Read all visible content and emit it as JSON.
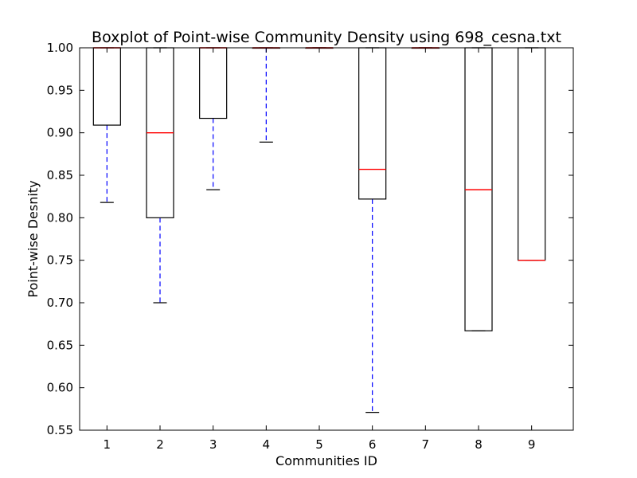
{
  "chart_data": {
    "type": "box",
    "title": "Boxplot of Point-wise Community Density using 698_cesna.txt",
    "xlabel": "Communities ID",
    "ylabel": "Point-wise Desnity",
    "ylim": [
      0.55,
      1.0
    ],
    "yticks": [
      "0.55",
      "0.60",
      "0.65",
      "0.70",
      "0.75",
      "0.80",
      "0.85",
      "0.90",
      "0.95",
      "1.00"
    ],
    "categories": [
      "1",
      "2",
      "3",
      "4",
      "5",
      "6",
      "7",
      "8",
      "9"
    ],
    "boxes": [
      {
        "id": "1",
        "whisker_low": 0.818,
        "q1": 0.909,
        "median": 1.0,
        "q3": 1.0,
        "whisker_high": 1.0
      },
      {
        "id": "2",
        "whisker_low": 0.7,
        "q1": 0.8,
        "median": 0.9,
        "q3": 1.0,
        "whisker_high": 1.0
      },
      {
        "id": "3",
        "whisker_low": 0.833,
        "q1": 0.917,
        "median": 1.0,
        "q3": 1.0,
        "whisker_high": 1.0
      },
      {
        "id": "4",
        "whisker_low": 0.889,
        "q1": 1.0,
        "median": 1.0,
        "q3": 1.0,
        "whisker_high": 1.0
      },
      {
        "id": "5",
        "whisker_low": 1.0,
        "q1": 1.0,
        "median": 1.0,
        "q3": 1.0,
        "whisker_high": 1.0
      },
      {
        "id": "6",
        "whisker_low": 0.571,
        "q1": 0.822,
        "median": 0.857,
        "q3": 1.0,
        "whisker_high": 1.0
      },
      {
        "id": "7",
        "whisker_low": 1.0,
        "q1": 1.0,
        "median": 1.0,
        "q3": 1.0,
        "whisker_high": 1.0
      },
      {
        "id": "8",
        "whisker_low": 0.667,
        "q1": 0.667,
        "median": 0.833,
        "q3": 1.0,
        "whisker_high": 1.0
      },
      {
        "id": "9",
        "whisker_low": 0.75,
        "q1": 0.75,
        "median": 0.75,
        "q3": 1.0,
        "whisker_high": 1.0
      }
    ],
    "colors": {
      "box": "#000000",
      "median": "#ff0000",
      "whisker": "#0000ff",
      "cap": "#000000"
    }
  }
}
